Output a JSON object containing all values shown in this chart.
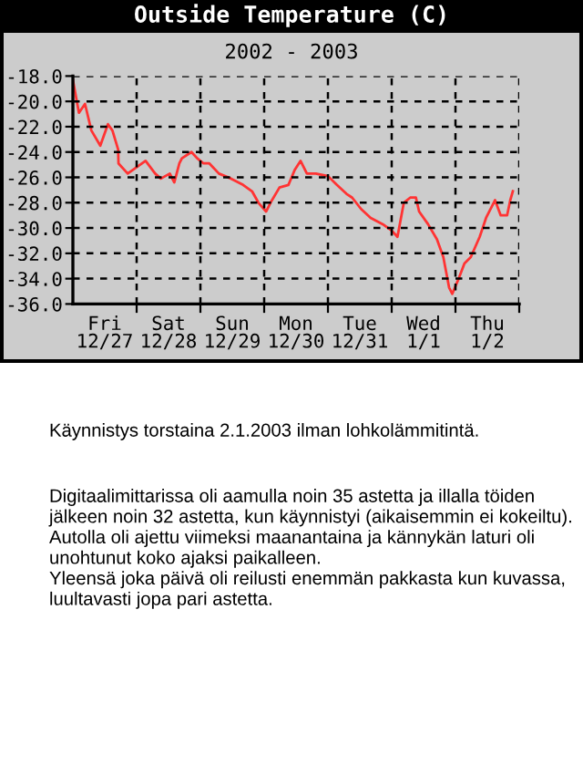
{
  "chart_data": {
    "type": "line",
    "title": "Outside Temperature (C)",
    "subtitle": "2002 - 2003",
    "x": [
      "2002-12-27T00:00",
      "2002-12-27T02:17",
      "2002-12-27T04:34",
      "2002-12-27T06:58",
      "2002-12-27T10:19",
      "2002-12-27T13:12",
      "2002-12-27T14:53",
      "2002-12-27T17:02",
      "2002-12-27T17:10",
      "2002-12-27T20:38",
      "2002-12-28T00:00",
      "2002-12-28T03:22",
      "2002-12-28T06:58",
      "2002-12-28T09:07",
      "2002-12-28T12:29",
      "2002-12-28T14:10",
      "2002-12-28T16:05",
      "2002-12-28T17:02",
      "2002-12-28T20:38",
      "2002-12-28T22:48",
      "2002-12-29T01:12",
      "2002-12-29T03:22",
      "2002-12-29T06:58",
      "2002-12-29T11:31",
      "2002-12-29T16:05",
      "2002-12-29T19:26",
      "2002-12-29T21:50",
      "2002-12-30T00:43",
      "2002-12-30T02:24",
      "2002-12-30T05:46",
      "2002-12-30T09:07",
      "2002-12-30T11:31",
      "2002-12-30T13:41",
      "2002-12-30T16:05",
      "2002-12-30T19:26",
      "2002-12-31T00:00",
      "2002-12-31T03:22",
      "2002-12-31T06:58",
      "2002-12-31T09:07",
      "2002-12-31T12:29",
      "2002-12-31T16:05",
      "2002-12-31T20:38",
      "2003-01-01T00:00",
      "2003-01-01T02:10",
      "2003-01-01T04:34",
      "2003-01-01T06:58",
      "2003-01-01T09:07",
      "2003-01-01T10:19",
      "2003-01-01T13:41",
      "2003-01-01T17:02",
      "2003-01-01T19:26",
      "2003-01-01T21:36",
      "2003-01-01T22:48",
      "2003-01-02T01:12",
      "2003-01-02T03:22",
      "2003-01-02T05:46",
      "2003-01-02T09:07",
      "2003-01-02T11:31",
      "2003-01-02T14:53",
      "2003-01-02T17:02",
      "2003-01-02T19:26",
      "2003-01-02T20:38",
      "2003-01-02T21:36"
    ],
    "series": [
      {
        "color": "#ff3333",
        "values": [
          -18.3,
          -20.9,
          -20.2,
          -22.3,
          -23.5,
          -21.8,
          -22.3,
          -23.8,
          -24.9,
          -25.7,
          -25.2,
          -24.7,
          -25.7,
          -26.1,
          -25.7,
          -26.4,
          -24.9,
          -24.5,
          -24.0,
          -24.5,
          -24.9,
          -24.9,
          -25.7,
          -26.1,
          -26.6,
          -27.1,
          -28.0,
          -28.7,
          -28.0,
          -26.8,
          -26.6,
          -25.4,
          -24.7,
          -25.7,
          -25.7,
          -25.9,
          -26.6,
          -27.3,
          -27.6,
          -28.5,
          -29.2,
          -29.7,
          -30.2,
          -30.7,
          -28.0,
          -27.6,
          -27.6,
          -28.7,
          -29.7,
          -30.9,
          -32.3,
          -34.7,
          -35.2,
          -34.0,
          -32.8,
          -32.3,
          -30.7,
          -29.2,
          -27.8,
          -29.0,
          -29.0,
          -27.8,
          -27.1
        ]
      }
    ],
    "xlim": [
      "2002-12-27T00:00",
      "2003-01-03T00:00"
    ],
    "xticks": [
      {
        "value": "2002-12-27T12:00",
        "label": "Fri\n12/27"
      },
      {
        "value": "2002-12-28T00:00",
        "label": null
      },
      {
        "value": "2002-12-28T12:00",
        "label": "Sat\n12/28"
      },
      {
        "value": "2002-12-29T00:00",
        "label": null
      },
      {
        "value": "2002-12-29T12:00",
        "label": "Sun\n12/29"
      },
      {
        "value": "2002-12-30T00:00",
        "label": null
      },
      {
        "value": "2002-12-30T12:00",
        "label": "Mon\n12/30"
      },
      {
        "value": "2002-12-31T00:00",
        "label": null
      },
      {
        "value": "2002-12-31T12:00",
        "label": "Tue\n12/31"
      },
      {
        "value": "2003-01-01T00:00",
        "label": null
      },
      {
        "value": "2003-01-01T12:00",
        "label": "Wed\n1/1"
      },
      {
        "value": "2003-01-02T00:00",
        "label": null
      },
      {
        "value": "2003-01-02T12:00",
        "label": "Thu\n1/2"
      },
      {
        "value": "2003-01-03T00:00",
        "label": null
      }
    ],
    "ylim": [
      -36,
      -18
    ],
    "yticks": [
      {
        "value": -36,
        "label": "-36.0"
      },
      {
        "value": -34,
        "label": "-34.0"
      },
      {
        "value": -32,
        "label": "-32.0"
      },
      {
        "value": -30,
        "label": "-30.0"
      },
      {
        "value": -28,
        "label": "-28.0"
      },
      {
        "value": -26,
        "label": "-26.0"
      },
      {
        "value": -24,
        "label": "-24.0"
      },
      {
        "value": -22,
        "label": "-22.0"
      },
      {
        "value": -20,
        "label": "-20.0"
      },
      {
        "value": -18,
        "label": "-18.0"
      }
    ],
    "grid": true,
    "legend": false,
    "marker": "none",
    "line_style": "solid",
    "annotations": [
      "Käynnistys torstaina 2.1.2003 ilman lohkolämmitintä.",
      "Digitaalimittarissa oli aamulla noin 35 astetta ja illalla töiden jälkeen noin 32 astetta, kun käynnistyi (aikaisemmin ei kokeiltu).\nAutolla oli ajettu viimeksi maanantaina ja kännykän laturi oli unohtunut koko ajaksi paikalleen.\nYleensä joka päivä oli reilusti enemmän pakkasta kun kuvassa, luultavasti jopa pari astetta."
    ]
  }
}
